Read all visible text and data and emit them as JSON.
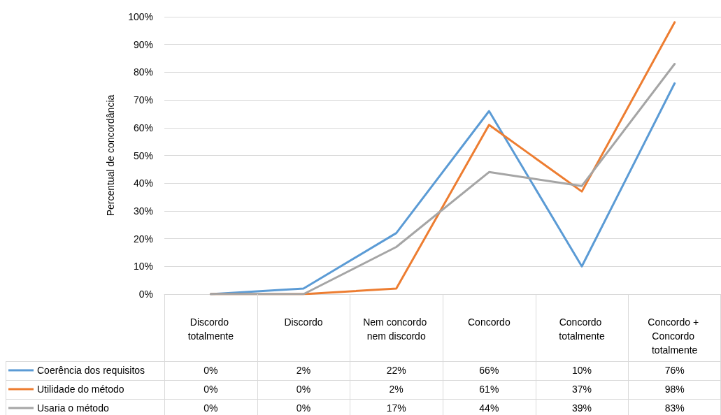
{
  "chart_data": {
    "type": "line",
    "ylabel": "Percentual de concordância",
    "categories": [
      "Discordo totalmente",
      "Discordo",
      "Nem concordo nem discordo",
      "Concordo",
      "Concordo totalmente",
      "Concordo + Concordo totalmente"
    ],
    "series": [
      {
        "name": "Coerência dos requisitos",
        "color": "#5b9bd5",
        "values": [
          0,
          2,
          22,
          66,
          10,
          76
        ],
        "value_labels": [
          "0%",
          "2%",
          "22%",
          "66%",
          "10%",
          "76%"
        ]
      },
      {
        "name": "Utilidade do método",
        "color": "#ed7d31",
        "values": [
          0,
          0,
          2,
          61,
          37,
          98
        ],
        "value_labels": [
          "0%",
          "0%",
          "2%",
          "61%",
          "37%",
          "98%"
        ]
      },
      {
        "name": "Usaria o método",
        "color": "#a5a5a5",
        "values": [
          0,
          0,
          17,
          44,
          39,
          83
        ],
        "value_labels": [
          "0%",
          "0%",
          "17%",
          "44%",
          "39%",
          "83%"
        ]
      }
    ],
    "ylim": [
      0,
      100
    ],
    "yticks": [
      {
        "value": 0,
        "label": "0%"
      },
      {
        "value": 10,
        "label": "10%"
      },
      {
        "value": 20,
        "label": "20%"
      },
      {
        "value": 30,
        "label": "30%"
      },
      {
        "value": 40,
        "label": "40%"
      },
      {
        "value": 50,
        "label": "50%"
      },
      {
        "value": 60,
        "label": "60%"
      },
      {
        "value": 70,
        "label": "70%"
      },
      {
        "value": 80,
        "label": "80%"
      },
      {
        "value": 90,
        "label": "90%"
      },
      {
        "value": 100,
        "label": "100%"
      }
    ],
    "grid": "y",
    "legend": "bottom",
    "marker": "none",
    "line_style": "solid"
  }
}
